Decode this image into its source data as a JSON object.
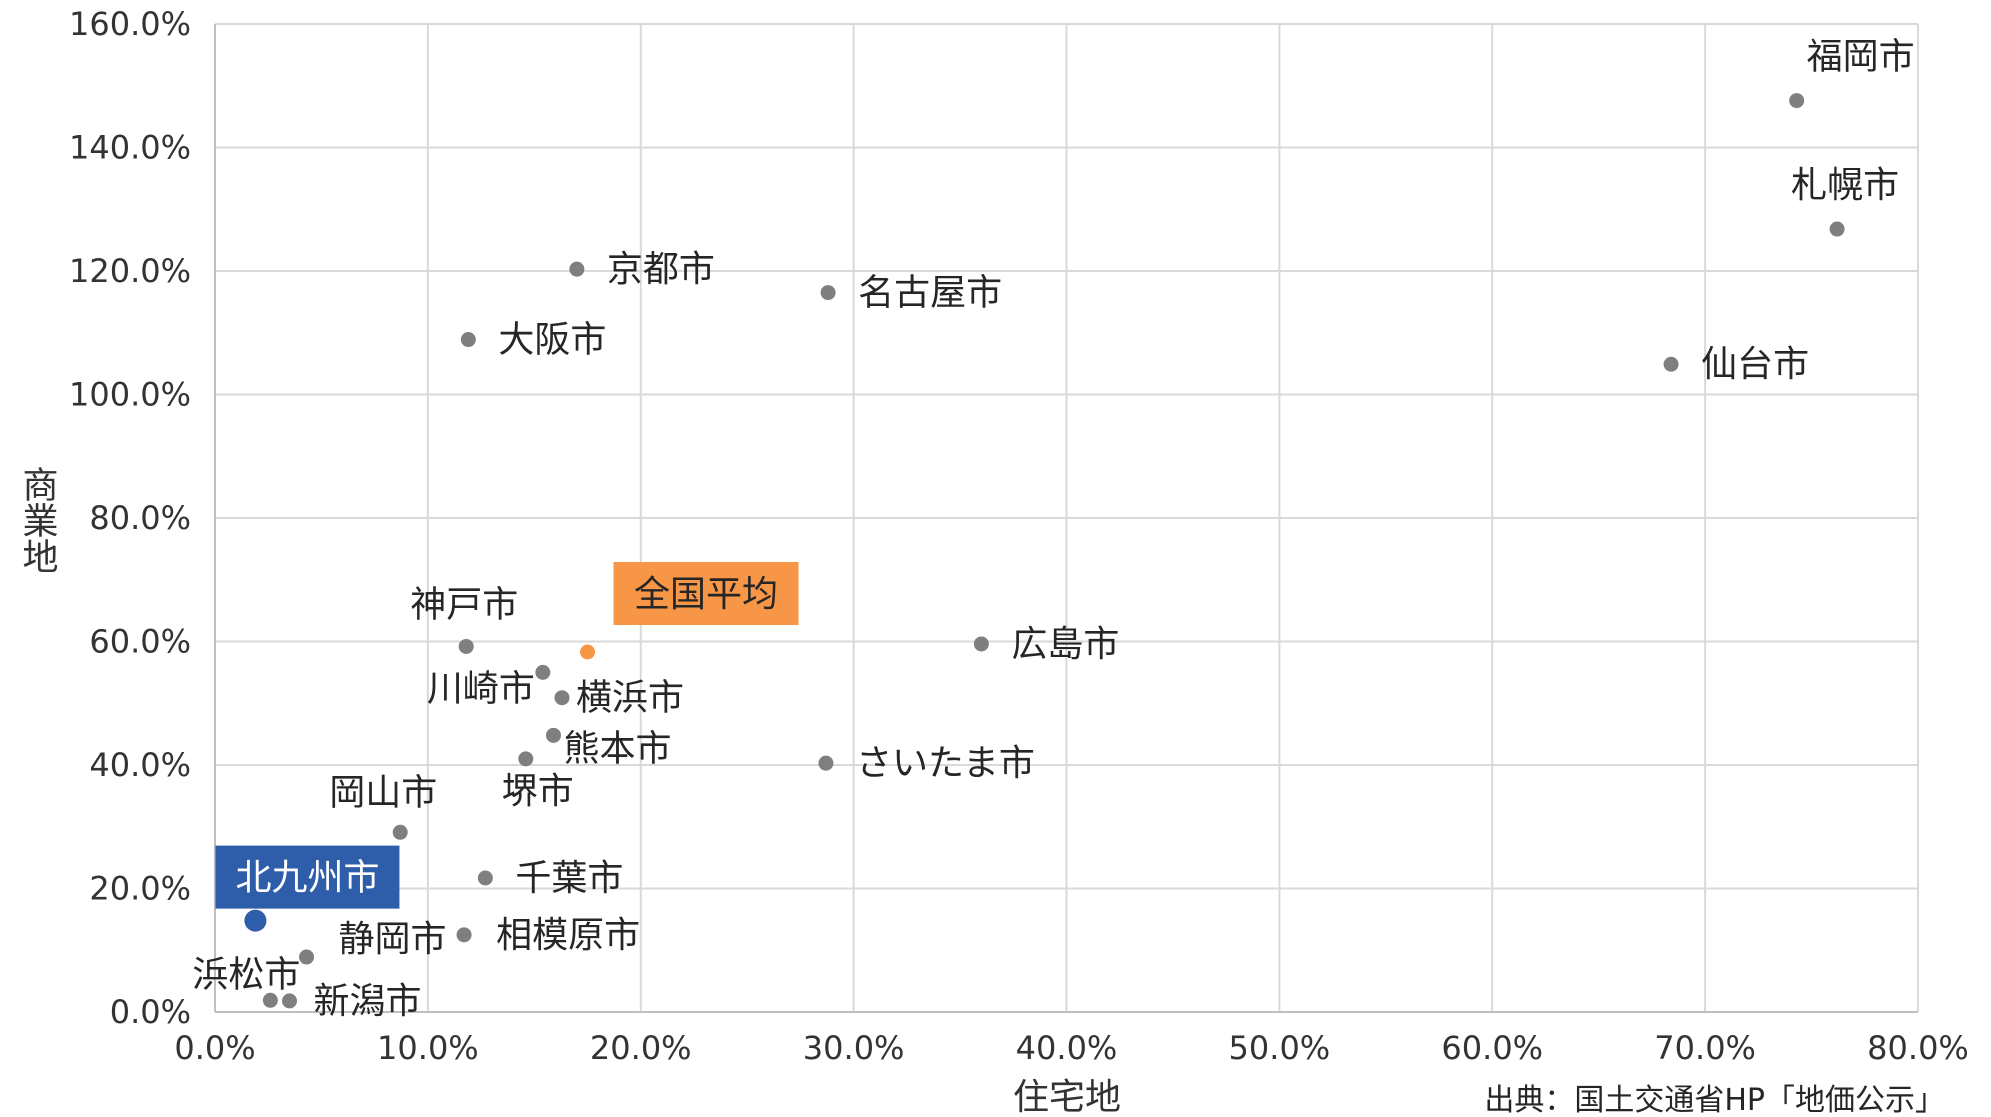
{
  "chart_data": {
    "type": "scatter",
    "xlabel": "住宅地",
    "ylabel": "商業地",
    "xlim": [
      0,
      80
    ],
    "ylim": [
      0,
      160
    ],
    "x_ticks": [
      "0.0%",
      "10.0%",
      "20.0%",
      "30.0%",
      "40.0%",
      "50.0%",
      "60.0%",
      "70.0%",
      "80.0%"
    ],
    "y_ticks": [
      "0.0%",
      "20.0%",
      "40.0%",
      "60.0%",
      "80.0%",
      "100.0%",
      "120.0%",
      "140.0%",
      "160.0%"
    ],
    "grid": true,
    "source": "出典：国土交通省HP「地価公示」",
    "colors": {
      "default": "#7f7f7f",
      "average": "#f79646",
      "highlight": "#2e5eaa"
    },
    "points": [
      {
        "label": "福岡市",
        "x": 74.3,
        "y": 147.6
      },
      {
        "label": "札幌市",
        "x": 76.2,
        "y": 126.8
      },
      {
        "label": "仙台市",
        "x": 68.4,
        "y": 104.9
      },
      {
        "label": "京都市",
        "x": 17.0,
        "y": 120.3
      },
      {
        "label": "名古屋市",
        "x": 28.8,
        "y": 116.5
      },
      {
        "label": "大阪市",
        "x": 11.9,
        "y": 108.9
      },
      {
        "label": "神戸市",
        "x": 11.8,
        "y": 59.2
      },
      {
        "label": "全国平均",
        "x": 17.5,
        "y": 58.3,
        "style": "average"
      },
      {
        "label": "広島市",
        "x": 36.0,
        "y": 59.6
      },
      {
        "label": "川崎市",
        "x": 15.4,
        "y": 55.0
      },
      {
        "label": "横浜市",
        "x": 16.3,
        "y": 50.9
      },
      {
        "label": "熊本市",
        "x": 15.9,
        "y": 44.8
      },
      {
        "label": "堺市",
        "x": 14.6,
        "y": 41.0
      },
      {
        "label": "さいたま市",
        "x": 28.7,
        "y": 40.3
      },
      {
        "label": "岡山市",
        "x": 8.7,
        "y": 29.1
      },
      {
        "label": "千葉市",
        "x": 12.7,
        "y": 21.7
      },
      {
        "label": "北九州市",
        "x": 1.9,
        "y": 14.8,
        "style": "highlight"
      },
      {
        "label": "相模原市",
        "x": 11.7,
        "y": 12.5
      },
      {
        "label": "静岡市",
        "x": 4.3,
        "y": 8.9
      },
      {
        "label": "浜松市",
        "x": 2.6,
        "y": 1.9
      },
      {
        "label": "新潟市",
        "x": 3.5,
        "y": 1.8
      }
    ]
  }
}
